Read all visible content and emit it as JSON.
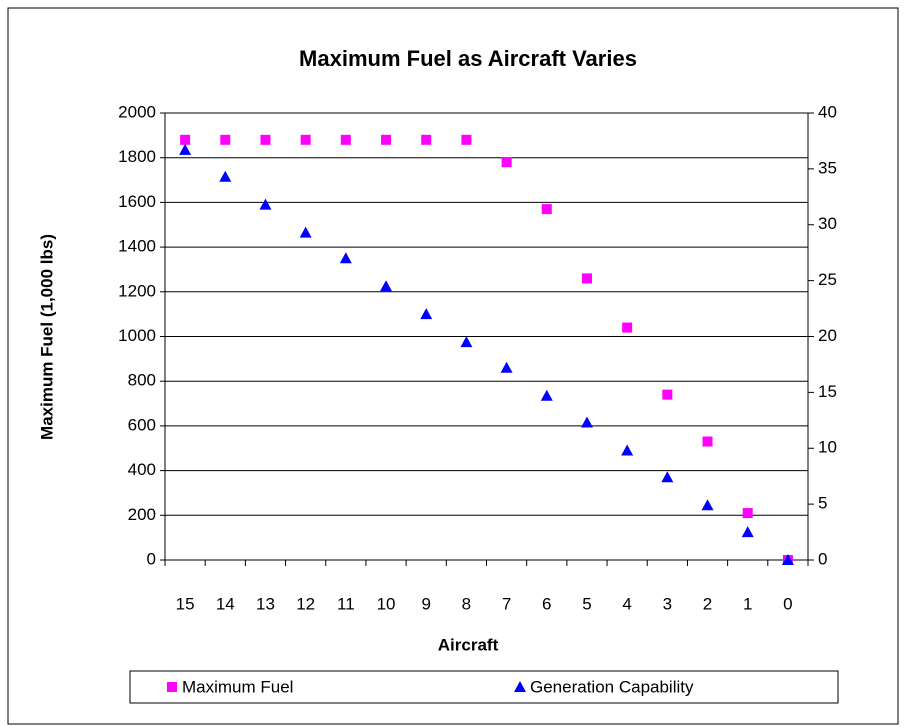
{
  "chart_data": {
    "type": "scatter",
    "title": "Maximum Fuel as Aircraft Varies",
    "xlabel": "Aircraft",
    "ylabel": "Maximum Fuel (1,000 lbs)",
    "categories": [
      "15",
      "14",
      "13",
      "12",
      "11",
      "10",
      "9",
      "8",
      "7",
      "6",
      "5",
      "4",
      "3",
      "2",
      "1",
      "0"
    ],
    "series": [
      {
        "name": "Maximum Fuel",
        "color": "#ff00ff",
        "marker": "square",
        "values": [
          1880,
          1880,
          1880,
          1880,
          1880,
          1880,
          1880,
          1880,
          1780,
          1570,
          1260,
          1040,
          740,
          530,
          210,
          0
        ]
      },
      {
        "name": "Generation Capability",
        "color": "#0000ff",
        "marker": "triangle",
        "axis": "y2",
        "values": [
          36.7,
          34.3,
          31.8,
          29.3,
          27.0,
          24.5,
          22.0,
          19.5,
          17.2,
          14.7,
          12.3,
          9.8,
          7.4,
          4.9,
          2.5,
          0
        ]
      }
    ],
    "ylim": [
      0,
      2000
    ],
    "yticks": [
      0,
      200,
      400,
      600,
      800,
      1000,
      1200,
      1400,
      1600,
      1800,
      2000
    ],
    "y2lim": [
      0,
      40
    ],
    "y2ticks": [
      0,
      5,
      10,
      15,
      20,
      25,
      30,
      35,
      40
    ],
    "grid": true,
    "legend": "bottom"
  }
}
